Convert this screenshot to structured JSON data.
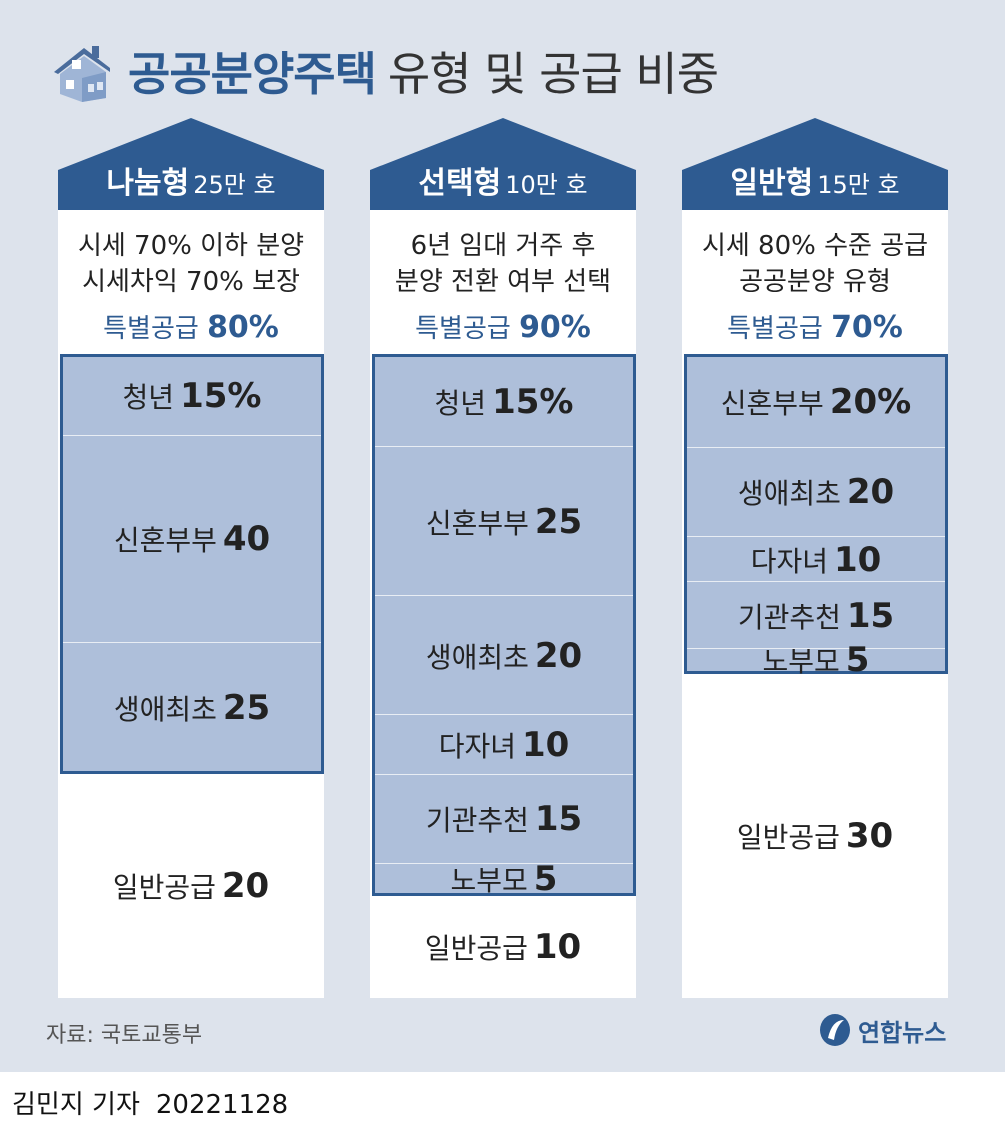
{
  "header": {
    "title_bold": "공공분양주택",
    "title_rest": "유형 및 공급 비중"
  },
  "chart_data": {
    "type": "bar",
    "subtype": "stacked-100",
    "categories": [
      "나눔형",
      "선택형",
      "일반형"
    ],
    "columns": [
      {
        "name": "나눔형",
        "quantity": "25만 호",
        "desc": [
          "시세 70% 이하 분양",
          "시세차익 70% 보장"
        ],
        "special_label": "특별공급",
        "special_pct": "80%",
        "segments": [
          {
            "label": "청년",
            "value": 15,
            "display": "15%"
          },
          {
            "label": "신혼부부",
            "value": 40,
            "display": "40"
          },
          {
            "label": "생애최초",
            "value": 25,
            "display": "25"
          }
        ],
        "general": {
          "label": "일반공급",
          "value": 20,
          "display": "20"
        }
      },
      {
        "name": "선택형",
        "quantity": "10만 호",
        "desc": [
          "6년 임대 거주 후",
          "분양 전환 여부 선택"
        ],
        "special_label": "특별공급",
        "special_pct": "90%",
        "segments": [
          {
            "label": "청년",
            "value": 15,
            "display": "15%"
          },
          {
            "label": "신혼부부",
            "value": 25,
            "display": "25"
          },
          {
            "label": "생애최초",
            "value": 20,
            "display": "20"
          },
          {
            "label": "다자녀",
            "value": 10,
            "display": "10"
          },
          {
            "label": "기관추천",
            "value": 15,
            "display": "15"
          },
          {
            "label": "노부모",
            "value": 5,
            "display": "5"
          }
        ],
        "general": {
          "label": "일반공급",
          "value": 10,
          "display": "10"
        }
      },
      {
        "name": "일반형",
        "quantity": "15만 호",
        "desc": [
          "시세 80% 수준 공급",
          "공공분양 유형"
        ],
        "special_label": "특별공급",
        "special_pct": "70%",
        "segments": [
          {
            "label": "신혼부부",
            "value": 20,
            "display": "20%"
          },
          {
            "label": "생애최초",
            "value": 20,
            "display": "20"
          },
          {
            "label": "다자녀",
            "value": 10,
            "display": "10"
          },
          {
            "label": "기관추천",
            "value": 15,
            "display": "15"
          },
          {
            "label": "노부모",
            "value": 5,
            "display": "5"
          }
        ],
        "general": {
          "label": "일반공급",
          "value": 30,
          "display": "30"
        }
      }
    ]
  },
  "footer": {
    "source": "자료: 국토교통부",
    "logo": "연합뉴스",
    "reporter": "김민지 기자",
    "date": "20221128"
  },
  "colors": {
    "primary": "#2e5b91",
    "box_fill": "#aebfda",
    "background": "#dde3ec"
  }
}
